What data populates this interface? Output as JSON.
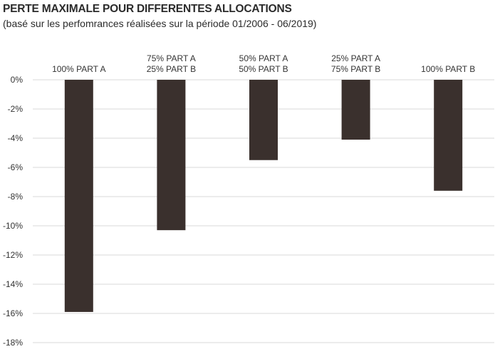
{
  "chart_data": {
    "type": "bar",
    "title": "PERTE MAXIMALE POUR DIFFERENTES ALLOCATIONS",
    "subtitle": "(basé sur les perfomrances réalisées sur la période 01/2006 - 06/2019)",
    "categories": [
      [
        "100% PART A"
      ],
      [
        "75% PART A",
        "25% PART B"
      ],
      [
        "50% PART A",
        "50% PART B"
      ],
      [
        "25% PART A",
        "75% PART B"
      ],
      [
        "100% PART B"
      ]
    ],
    "values": [
      -15.9,
      -10.3,
      -5.5,
      -4.1,
      -7.6
    ],
    "ylim": [
      -18,
      0
    ],
    "yticks": [
      0,
      -2,
      -4,
      -6,
      -8,
      -10,
      -12,
      -14,
      -16,
      -18
    ],
    "ytick_labels": [
      "0%",
      "-2%",
      "-4%",
      "-6%",
      "-8%",
      "-10%",
      "-12%",
      "-14%",
      "-16%",
      "-18%"
    ],
    "category_labels_position": "top",
    "grid": true,
    "bar_color": "#3a302d",
    "grid_color": "#d9d9d9"
  }
}
